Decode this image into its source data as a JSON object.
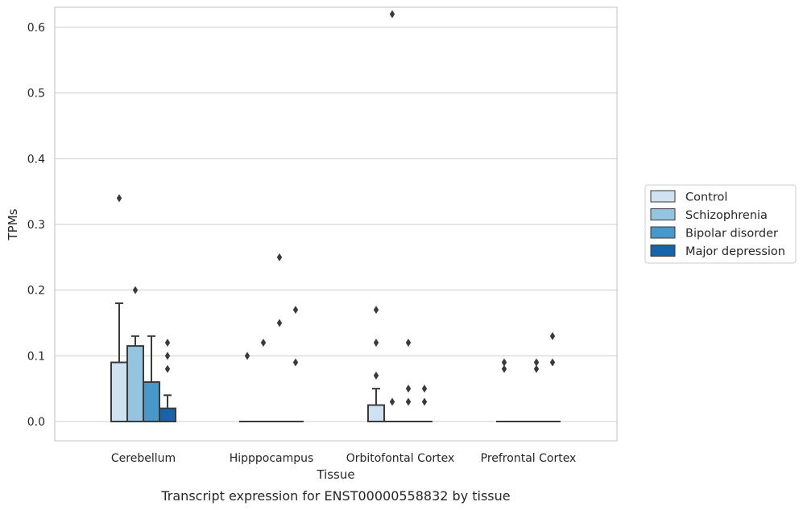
{
  "chart_data": {
    "type": "box",
    "title": "",
    "caption": "Transcript expression for ENST00000558832 by tissue",
    "xlabel": "Tissue",
    "ylabel": "TPMs",
    "ylim": [
      -0.03,
      0.655
    ],
    "yticks": [
      0.0,
      0.1,
      0.2,
      0.3,
      0.4,
      0.5,
      0.6
    ],
    "ytick_labels": [
      "0.0",
      "0.1",
      "0.2",
      "0.3",
      "0.4",
      "0.5",
      "0.6"
    ],
    "grid": "horizontal",
    "legend_position": "right",
    "categories": [
      "Cerebellum",
      "Hipppocampus",
      "Orbitofontal Cortex",
      "Prefrontal Cortex"
    ],
    "series": [
      {
        "name": "Control",
        "color": "#d0e1f2",
        "boxes": [
          {
            "q1": 0.0,
            "median": 0.0,
            "q3": 0.09,
            "whisker_low": 0.0,
            "whisker_high": 0.18,
            "outliers": [
              0.34
            ]
          },
          {
            "q1": 0.0,
            "median": 0.0,
            "q3": 0.0,
            "whisker_low": 0.0,
            "whisker_high": 0.0,
            "outliers": [
              0.1
            ]
          },
          {
            "q1": 0.0,
            "median": 0.0,
            "q3": 0.025,
            "whisker_low": 0.0,
            "whisker_high": 0.05,
            "outliers": [
              0.07,
              0.12,
              0.17
            ]
          },
          {
            "q1": 0.0,
            "median": 0.0,
            "q3": 0.0,
            "whisker_low": 0.0,
            "whisker_high": 0.0,
            "outliers": [
              0.08,
              0.09
            ]
          }
        ]
      },
      {
        "name": "Schizophrenia",
        "color": "#94c4df",
        "boxes": [
          {
            "q1": 0.0,
            "median": 0.0,
            "q3": 0.115,
            "whisker_low": 0.0,
            "whisker_high": 0.13,
            "outliers": [
              0.2
            ]
          },
          {
            "q1": 0.0,
            "median": 0.0,
            "q3": 0.0,
            "whisker_low": 0.0,
            "whisker_high": 0.0,
            "outliers": [
              0.12
            ]
          },
          {
            "q1": 0.0,
            "median": 0.0,
            "q3": 0.0,
            "whisker_low": 0.0,
            "whisker_high": 0.0,
            "outliers": [
              0.03,
              0.62
            ]
          },
          {
            "q1": 0.0,
            "median": 0.0,
            "q3": 0.0,
            "whisker_low": 0.0,
            "whisker_high": 0.0,
            "outliers": []
          }
        ]
      },
      {
        "name": "Bipolar disorder",
        "color": "#4a98c9",
        "boxes": [
          {
            "q1": 0.0,
            "median": 0.0,
            "q3": 0.06,
            "whisker_low": 0.0,
            "whisker_high": 0.13,
            "outliers": []
          },
          {
            "q1": 0.0,
            "median": 0.0,
            "q3": 0.0,
            "whisker_low": 0.0,
            "whisker_high": 0.0,
            "outliers": [
              0.15,
              0.25
            ]
          },
          {
            "q1": 0.0,
            "median": 0.0,
            "q3": 0.0,
            "whisker_low": 0.0,
            "whisker_high": 0.0,
            "outliers": [
              0.03,
              0.05,
              0.12
            ]
          },
          {
            "q1": 0.0,
            "median": 0.0,
            "q3": 0.0,
            "whisker_low": 0.0,
            "whisker_high": 0.0,
            "outliers": [
              0.08,
              0.09
            ]
          }
        ]
      },
      {
        "name": "Major depression",
        "color": "#1764ab",
        "boxes": [
          {
            "q1": 0.0,
            "median": 0.0,
            "q3": 0.02,
            "whisker_low": 0.0,
            "whisker_high": 0.04,
            "outliers": [
              0.08,
              0.1,
              0.12
            ]
          },
          {
            "q1": 0.0,
            "median": 0.0,
            "q3": 0.0,
            "whisker_low": 0.0,
            "whisker_high": 0.0,
            "outliers": [
              0.09,
              0.17
            ]
          },
          {
            "q1": 0.0,
            "median": 0.0,
            "q3": 0.0,
            "whisker_low": 0.0,
            "whisker_high": 0.0,
            "outliers": [
              0.03,
              0.05
            ]
          },
          {
            "q1": 0.0,
            "median": 0.0,
            "q3": 0.0,
            "whisker_low": 0.0,
            "whisker_high": 0.0,
            "outliers": [
              0.09,
              0.13
            ]
          }
        ]
      }
    ],
    "colors": {
      "grid": "#cccccc",
      "frame": "#cccccc",
      "box_edge": "#3a3a3a",
      "outlier": "#3a3a3a"
    }
  }
}
